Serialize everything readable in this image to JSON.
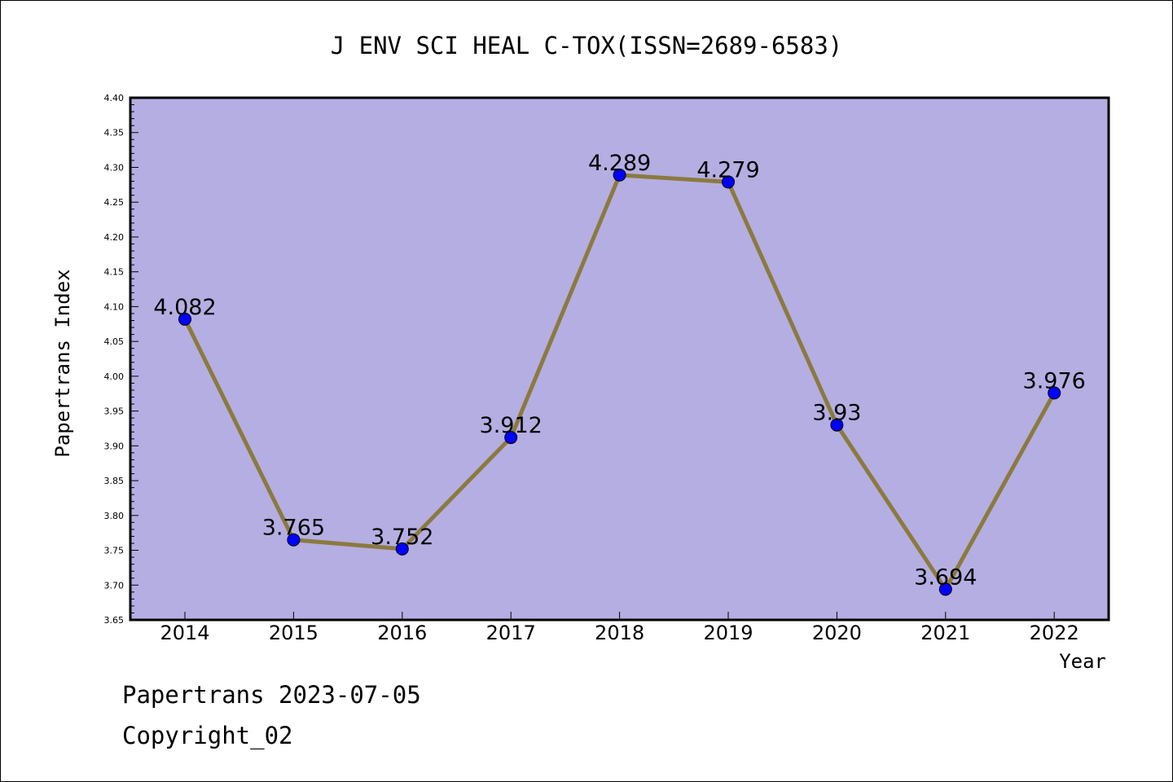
{
  "chart_data": {
    "type": "line",
    "title": "J ENV SCI HEAL C-TOX(ISSN=2689-6583)",
    "xlabel": "Year",
    "ylabel": "Papertrans Index",
    "categories": [
      "2014",
      "2015",
      "2016",
      "2017",
      "2018",
      "2019",
      "2020",
      "2021",
      "2022"
    ],
    "values": [
      4.082,
      3.765,
      3.752,
      3.912,
      4.289,
      4.279,
      3.93,
      3.694,
      3.976
    ],
    "value_labels": [
      "4.082",
      "3.765",
      "3.752",
      "3.912",
      "4.289",
      "4.279",
      "3.93",
      "3.694",
      "3.976"
    ],
    "ylim": [
      3.65,
      4.4
    ],
    "yticks": [
      "3.65",
      "3.70",
      "3.75",
      "3.80",
      "3.85",
      "3.90",
      "3.95",
      "4.00",
      "4.05",
      "4.10",
      "4.15",
      "4.20",
      "4.25",
      "4.30",
      "4.35",
      "4.40"
    ],
    "grid": false,
    "colors": {
      "plot_background": "#b5aee2",
      "line": "#8b7a3e",
      "marker": "#0000ff"
    }
  },
  "footer": {
    "date_line": "Papertrans 2023-07-05",
    "copyright": "Copyright_02"
  }
}
